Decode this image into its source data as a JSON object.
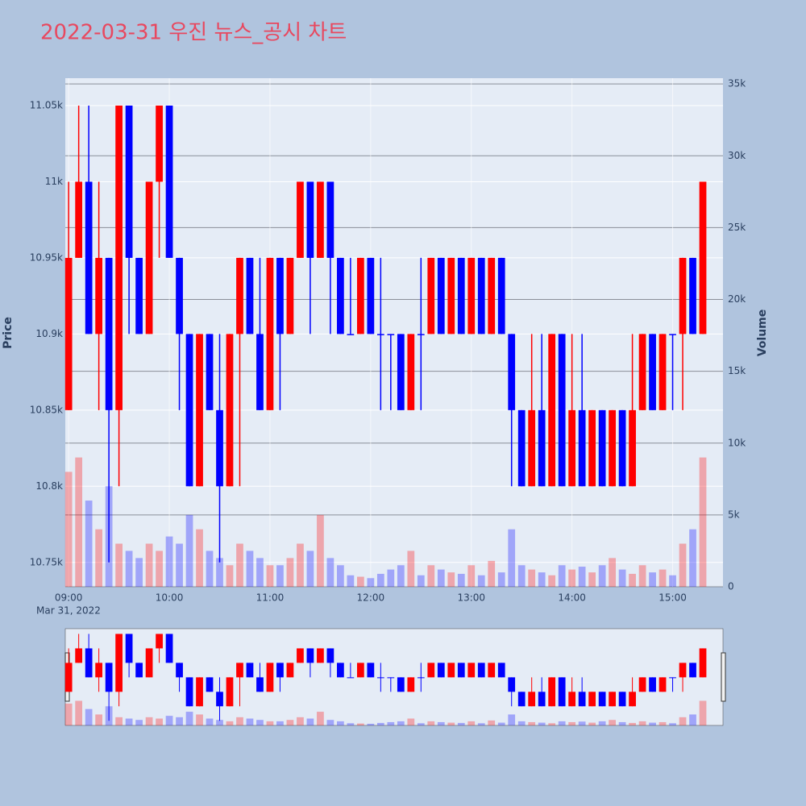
{
  "chart_data": {
    "type": "candlestick",
    "title": "2022-03-31 우진 뉴스_공시 차트",
    "x": [
      "2022-03-31 09:00",
      "2022-03-31 09:06",
      "2022-03-31 09:12",
      "2022-03-31 09:18",
      "2022-03-31 09:24",
      "2022-03-31 09:30",
      "2022-03-31 09:36",
      "2022-03-31 09:42",
      "2022-03-31 09:48",
      "2022-03-31 09:54",
      "2022-03-31 10:00",
      "2022-03-31 10:06",
      "2022-03-31 10:12",
      "2022-03-31 10:18",
      "2022-03-31 10:24",
      "2022-03-31 10:30",
      "2022-03-31 10:36",
      "2022-03-31 10:42",
      "2022-03-31 10:48",
      "2022-03-31 10:54",
      "2022-03-31 11:00",
      "2022-03-31 11:06",
      "2022-03-31 11:12",
      "2022-03-31 11:18",
      "2022-03-31 11:24",
      "2022-03-31 11:30",
      "2022-03-31 11:36",
      "2022-03-31 11:42",
      "2022-03-31 11:48",
      "2022-03-31 11:54",
      "2022-03-31 12:00",
      "2022-03-31 12:06",
      "2022-03-31 12:12",
      "2022-03-31 12:18",
      "2022-03-31 12:24",
      "2022-03-31 12:30",
      "2022-03-31 12:36",
      "2022-03-31 12:42",
      "2022-03-31 12:48",
      "2022-03-31 12:54",
      "2022-03-31 13:00",
      "2022-03-31 13:06",
      "2022-03-31 13:12",
      "2022-03-31 13:18",
      "2022-03-31 13:24",
      "2022-03-31 13:30",
      "2022-03-31 13:36",
      "2022-03-31 13:42",
      "2022-03-31 13:48",
      "2022-03-31 13:54",
      "2022-03-31 14:00",
      "2022-03-31 14:06",
      "2022-03-31 14:12",
      "2022-03-31 14:18",
      "2022-03-31 14:24",
      "2022-03-31 14:30",
      "2022-03-31 14:36",
      "2022-03-31 14:42",
      "2022-03-31 14:48",
      "2022-03-31 14:54",
      "2022-03-31 15:00",
      "2022-03-31 15:06",
      "2022-03-31 15:12",
      "2022-03-31 15:18"
    ],
    "open": [
      10850,
      10950,
      11000,
      10900,
      10950,
      10850,
      11050,
      10950,
      10900,
      11000,
      11050,
      10950,
      10900,
      10800,
      10900,
      10850,
      10800,
      10900,
      10950,
      10900,
      10850,
      10950,
      10900,
      10950,
      11000,
      10950,
      11000,
      10950,
      10900,
      10900,
      10950,
      10900,
      10900,
      10900,
      10850,
      10900,
      10900,
      10950,
      10900,
      10950,
      10900,
      10950,
      10900,
      10950,
      10900,
      10850,
      10800,
      10850,
      10800,
      10900,
      10800,
      10850,
      10800,
      10850,
      10800,
      10850,
      10800,
      10850,
      10900,
      10850,
      10900,
      10900,
      10950,
      10900
    ],
    "high": [
      11000,
      11050,
      11050,
      11000,
      10950,
      11050,
      11050,
      10950,
      11000,
      11050,
      11050,
      10950,
      10900,
      10900,
      10900,
      10900,
      10900,
      10950,
      10950,
      10950,
      10950,
      10950,
      10950,
      11000,
      11000,
      11000,
      11000,
      10950,
      10950,
      10950,
      10950,
      10950,
      10900,
      10900,
      10900,
      10950,
      10950,
      10950,
      10950,
      10950,
      10950,
      10950,
      10950,
      10950,
      10900,
      10850,
      10900,
      10900,
      10900,
      10900,
      10900,
      10900,
      10850,
      10850,
      10850,
      10850,
      10900,
      10900,
      10900,
      10900,
      10900,
      10950,
      10950,
      11000
    ],
    "low": [
      10850,
      10950,
      10900,
      10850,
      10750,
      10800,
      10900,
      10900,
      10900,
      10950,
      10950,
      10850,
      10800,
      10800,
      10850,
      10750,
      10800,
      10800,
      10900,
      10850,
      10850,
      10850,
      10900,
      10950,
      10900,
      10950,
      10900,
      10900,
      10900,
      10900,
      10900,
      10850,
      10850,
      10850,
      10850,
      10850,
      10900,
      10900,
      10900,
      10900,
      10900,
      10900,
      10900,
      10900,
      10800,
      10800,
      10800,
      10800,
      10800,
      10800,
      10800,
      10800,
      10800,
      10800,
      10800,
      10800,
      10800,
      10850,
      10850,
      10850,
      10850,
      10850,
      10900,
      10900
    ],
    "close": [
      10950,
      11000,
      10900,
      10950,
      10850,
      11050,
      10950,
      10900,
      11000,
      11050,
      10950,
      10900,
      10800,
      10900,
      10850,
      10800,
      10900,
      10950,
      10900,
      10850,
      10950,
      10900,
      10950,
      11000,
      10950,
      11000,
      10950,
      10900,
      10900,
      10950,
      10900,
      10900,
      10900,
      10850,
      10900,
      10900,
      10950,
      10900,
      10950,
      10900,
      10950,
      10900,
      10950,
      10900,
      10850,
      10800,
      10850,
      10800,
      10900,
      10800,
      10850,
      10800,
      10850,
      10800,
      10850,
      10800,
      10850,
      10900,
      10850,
      10900,
      10900,
      10950,
      10900,
      11000
    ],
    "volume": [
      8000,
      9000,
      6000,
      4000,
      7000,
      3000,
      2500,
      2000,
      3000,
      2500,
      3500,
      3000,
      5000,
      4000,
      2500,
      2000,
      1500,
      3000,
      2500,
      2000,
      1500,
      1500,
      2000,
      3000,
      2500,
      5000,
      2000,
      1500,
      800,
      700,
      600,
      900,
      1200,
      1500,
      2500,
      800,
      1500,
      1200,
      1000,
      900,
      1500,
      800,
      1800,
      1000,
      4000,
      1500,
      1200,
      1000,
      800,
      1500,
      1200,
      1400,
      1000,
      1500,
      2000,
      1200,
      900,
      1500,
      1000,
      1200,
      800,
      3000,
      4000,
      9000
    ],
    "increasing_color": "#ff0000",
    "decreasing_color": "#0000ff",
    "ylabel": "Price",
    "y2label": "Volume",
    "xlim": [
      "2022-03-31 08:58",
      "2022-03-31 15:30"
    ],
    "xticks": [
      {
        "value": "2022-03-31 09:00",
        "label": "09:00"
      },
      {
        "value": "2022-03-31 10:00",
        "label": "10:00"
      },
      {
        "value": "2022-03-31 11:00",
        "label": "11:00"
      },
      {
        "value": "2022-03-31 12:00",
        "label": "12:00"
      },
      {
        "value": "2022-03-31 13:00",
        "label": "13:00"
      },
      {
        "value": "2022-03-31 14:00",
        "label": "14:00"
      },
      {
        "value": "2022-03-31 15:00",
        "label": "15:00"
      }
    ],
    "xtick_date": "Mar 31, 2022",
    "ylim": [
      10734,
      11068
    ],
    "yticks": [
      {
        "value": 10750,
        "label": "10.75k"
      },
      {
        "value": 10800,
        "label": "10.8k"
      },
      {
        "value": 10850,
        "label": "10.85k"
      },
      {
        "value": 10900,
        "label": "10.9k"
      },
      {
        "value": 10950,
        "label": "10.95k"
      },
      {
        "value": 11000,
        "label": "11k"
      },
      {
        "value": 11050,
        "label": "11.05k"
      }
    ],
    "y2lim": [
      0,
      35400
    ],
    "y2ticks": [
      0,
      {
        "value": 5000,
        "label": "5k"
      },
      {
        "value": 10000,
        "label": "10k"
      },
      {
        "value": 15000,
        "label": "15k"
      },
      {
        "value": 20000,
        "label": "20k"
      },
      {
        "value": 25000,
        "label": "25k"
      },
      {
        "value": 30000,
        "label": "30k"
      },
      {
        "value": 35000,
        "label": "35k"
      }
    ],
    "grid": true,
    "rangeslider": true
  }
}
